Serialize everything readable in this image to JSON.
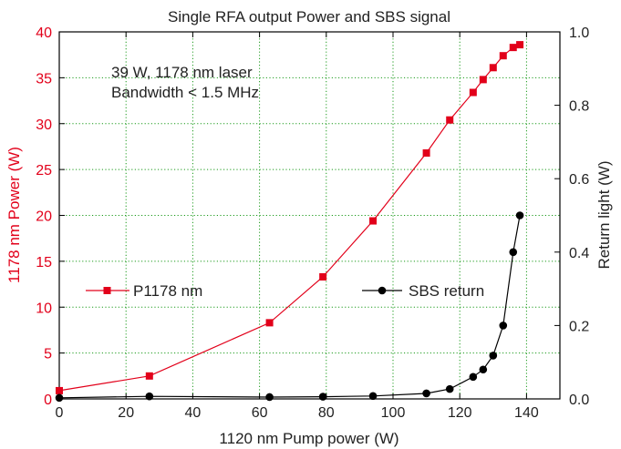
{
  "chart_data": {
    "type": "line",
    "title": "Single RFA output Power and SBS signal",
    "xlabel": "1120 nm Pump power (W)",
    "ylabel_left": "1178 nm Power (W)",
    "ylabel_right": "Return light (W)",
    "xlim": [
      0,
      150
    ],
    "ylim_left": [
      0,
      40
    ],
    "ylim_right": [
      0,
      1.0
    ],
    "x_ticks": [
      "0",
      "20",
      "40",
      "60",
      "80",
      "100",
      "120",
      "140"
    ],
    "y_left_ticks": [
      "0",
      "5",
      "10",
      "15",
      "20",
      "25",
      "30",
      "35",
      "40"
    ],
    "y_right_ticks": [
      "0.0",
      "0.2",
      "0.4",
      "0.6",
      "0.8",
      "1.0"
    ],
    "grid": true,
    "annotation_lines": [
      "39 W, 1178 nm laser",
      "Bandwidth < 1.5 MHz"
    ],
    "colors": {
      "p1178": "#e2001a",
      "sbs": "#000000",
      "grid": "#1a9a1a",
      "axis_left": "#e2001a"
    },
    "series": [
      {
        "name": "P1178 nm",
        "axis": "left",
        "marker": "square",
        "x": [
          0,
          27,
          63,
          79,
          94,
          110,
          117,
          124,
          127,
          130,
          133,
          136,
          138
        ],
        "y": [
          0.9,
          2.5,
          8.3,
          13.3,
          19.4,
          26.8,
          30.4,
          33.4,
          34.8,
          36.1,
          37.4,
          38.3,
          38.6
        ]
      },
      {
        "name": "SBS return",
        "axis": "right",
        "marker": "circle",
        "x": [
          0,
          27,
          63,
          79,
          94,
          110,
          117,
          124,
          127,
          130,
          133,
          136,
          138
        ],
        "y": [
          0.003,
          0.007,
          0.005,
          0.006,
          0.008,
          0.015,
          0.027,
          0.06,
          0.08,
          0.118,
          0.2,
          0.4,
          0.5
        ]
      }
    ]
  }
}
